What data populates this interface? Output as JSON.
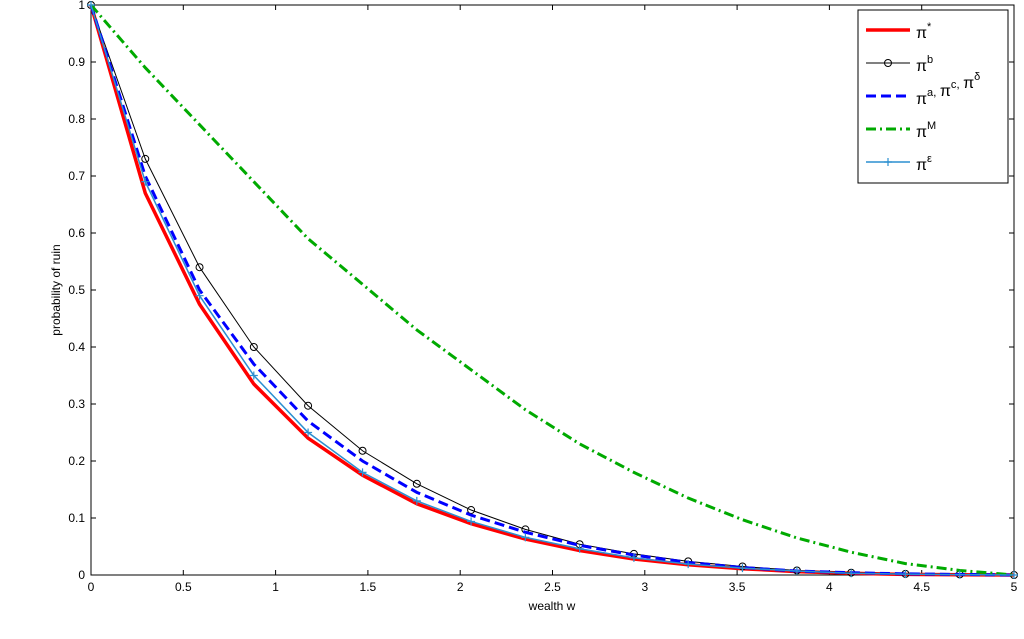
{
  "chart_data": {
    "type": "line",
    "xlabel": "wealth w",
    "ylabel": "probability of ruin",
    "x": [
      0,
      0.294,
      0.588,
      0.882,
      1.176,
      1.471,
      1.765,
      2.059,
      2.353,
      2.647,
      2.941,
      3.235,
      3.529,
      3.824,
      4.118,
      4.412,
      4.706,
      5
    ],
    "series": [
      {
        "name": "π*",
        "color": "#ff0000",
        "style": "solid",
        "width": 3.5,
        "values": [
          1,
          0.67,
          0.475,
          0.335,
          0.24,
          0.175,
          0.125,
          0.09,
          0.063,
          0.043,
          0.028,
          0.018,
          0.011,
          0.006,
          0.003,
          0.001,
          0.0005,
          0
        ]
      },
      {
        "name": "πb",
        "color": "#000000",
        "style": "solid",
        "width": 1,
        "marker": "o",
        "values": [
          1,
          0.73,
          0.54,
          0.4,
          0.297,
          0.218,
          0.16,
          0.114,
          0.08,
          0.054,
          0.037,
          0.024,
          0.015,
          0.008,
          0.004,
          0.002,
          0.001,
          0
        ]
      },
      {
        "name": "πa, πc, πδ",
        "color": "#0000ff",
        "style": "dashed",
        "width": 3,
        "values": [
          1,
          0.7,
          0.5,
          0.37,
          0.27,
          0.2,
          0.145,
          0.105,
          0.075,
          0.052,
          0.035,
          0.022,
          0.013,
          0.007,
          0.004,
          0.002,
          0.001,
          0
        ]
      },
      {
        "name": "πM",
        "color": "#00aa00",
        "style": "dashdot",
        "width": 3,
        "values": [
          1,
          0.89,
          0.79,
          0.69,
          0.59,
          0.51,
          0.43,
          0.36,
          0.29,
          0.23,
          0.18,
          0.135,
          0.097,
          0.065,
          0.04,
          0.02,
          0.008,
          0
        ]
      },
      {
        "name": "πε",
        "color": "#2b8fd0",
        "style": "solid",
        "width": 1.5,
        "marker": "+",
        "values": [
          1,
          0.69,
          0.49,
          0.35,
          0.25,
          0.18,
          0.13,
          0.094,
          0.066,
          0.046,
          0.03,
          0.019,
          0.012,
          0.007,
          0.003,
          0.0015,
          0.0006,
          0
        ]
      }
    ],
    "xlim": [
      0,
      5
    ],
    "xticks": [
      0,
      0.5,
      1,
      1.5,
      2,
      2.5,
      3,
      3.5,
      4,
      4.5,
      5
    ],
    "ylim": [
      0,
      1
    ],
    "yticks": [
      0,
      0.1,
      0.2,
      0.3,
      0.4,
      0.5,
      0.6,
      0.7,
      0.8,
      0.9,
      1
    ],
    "legend": "northeast",
    "grid": false
  }
}
